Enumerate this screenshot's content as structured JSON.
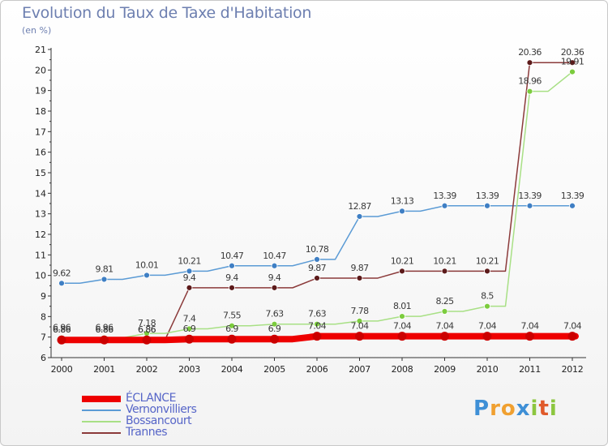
{
  "header": {
    "title": "Evolution du Taux de Taxe d'Habitation",
    "subtitle": "(en %)"
  },
  "brand": {
    "text": "Proxiti",
    "letters": [
      "P",
      "r",
      "o",
      "x",
      "i",
      "t",
      "i"
    ],
    "colors": [
      "#3e8fd6",
      "#f0a030",
      "#f0a030",
      "#3e8fd6",
      "#8cc63f",
      "#e05a2a",
      "#8cc63f"
    ]
  },
  "chart_data": {
    "type": "line",
    "x": [
      "2000",
      "2001",
      "2002",
      "2003",
      "2004",
      "2005",
      "2006",
      "2007",
      "2008",
      "2009",
      "2010",
      "2011",
      "2012"
    ],
    "ylim": [
      6,
      21
    ],
    "yticks": [
      "6",
      "7",
      "8",
      "9",
      "10",
      "11",
      "12",
      "13",
      "14",
      "15",
      "16",
      "17",
      "18",
      "19",
      "20",
      "21"
    ],
    "grid": false,
    "legend_position": "bottom-left",
    "series": [
      {
        "name": "ÉCLANCE",
        "color": "#ee0000",
        "values": [
          6.86,
          6.86,
          6.86,
          6.9,
          6.9,
          6.9,
          7.04,
          7.04,
          7.04,
          7.04,
          7.04,
          7.04,
          7.04
        ],
        "labels": [
          "6.86",
          "6.86",
          "6.86",
          "6.9",
          "6.9",
          "6.9",
          "7.04",
          "7.04",
          "7.04",
          "7.04",
          "7.04",
          "7.04",
          "7.04"
        ]
      },
      {
        "name": "Vernonvilliers",
        "color": "#5b9bd5",
        "marker": "#3f7fc4",
        "values": [
          9.62,
          9.81,
          10.01,
          10.21,
          10.47,
          10.47,
          10.78,
          12.87,
          13.13,
          13.39,
          13.39,
          13.39,
          13.39
        ],
        "labels": [
          "9.62",
          "9.81",
          "10.01",
          "10.21",
          "10.47",
          "10.47",
          "10.78",
          "12.87",
          "13.13",
          "13.39",
          "13.39",
          "13.39",
          "13.39"
        ]
      },
      {
        "name": "Bossancourt",
        "color": "#a8e085",
        "marker": "#7ccc3e",
        "values": [
          6.96,
          6.96,
          7.18,
          7.4,
          7.55,
          7.63,
          7.63,
          7.78,
          8.01,
          8.25,
          8.5,
          18.96,
          19.91
        ],
        "labels": [
          "6.96",
          "6.96",
          "7.18",
          "7.4",
          "7.55",
          "7.63",
          "7.63",
          "7.78",
          "8.01",
          "8.25",
          "8.5",
          "18.96",
          "19.91"
        ]
      },
      {
        "name": "Trannes",
        "color": "#8b3a3a",
        "marker": "#5c1a1a",
        "values": [
          6.86,
          6.86,
          6.86,
          9.4,
          9.4,
          9.4,
          9.87,
          9.87,
          10.21,
          10.21,
          10.21,
          20.36,
          20.36
        ],
        "labels": [
          "6.86",
          "6.86",
          "6.86",
          "9.4",
          "9.4",
          "9.4",
          "9.87",
          "9.87",
          "10.21",
          "10.21",
          "10.21",
          "20.36",
          "20.36"
        ]
      }
    ]
  }
}
